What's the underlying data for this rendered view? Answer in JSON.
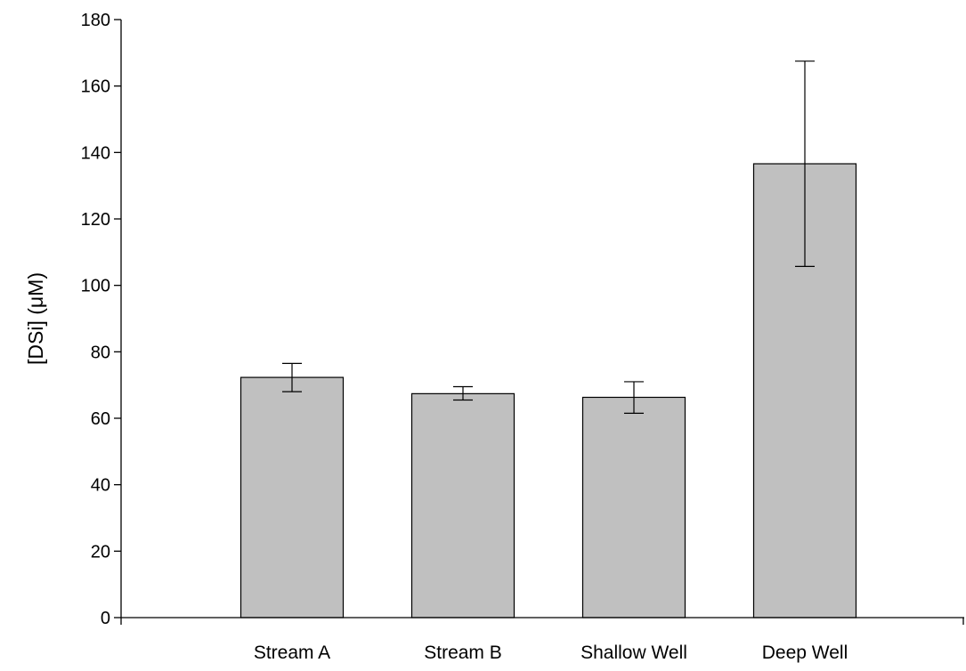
{
  "chart_data": {
    "type": "bar",
    "categories": [
      "Stream A",
      "Stream B",
      "Shallow Well",
      "Deep Well"
    ],
    "values": [
      72.3,
      67.4,
      66.3,
      136.6
    ],
    "error_upper": [
      76.5,
      69.5,
      71.0,
      167.5
    ],
    "error_lower": [
      68.0,
      65.5,
      61.5,
      105.7
    ],
    "xlabel": "",
    "ylabel": "[DSi] (μM)",
    "ylim": [
      0,
      180
    ],
    "yticks": [
      0,
      20,
      40,
      60,
      80,
      100,
      120,
      140,
      160,
      180
    ],
    "grid": false,
    "bar_color": "#c0c0c0",
    "bar_edge_color": "#000000"
  }
}
